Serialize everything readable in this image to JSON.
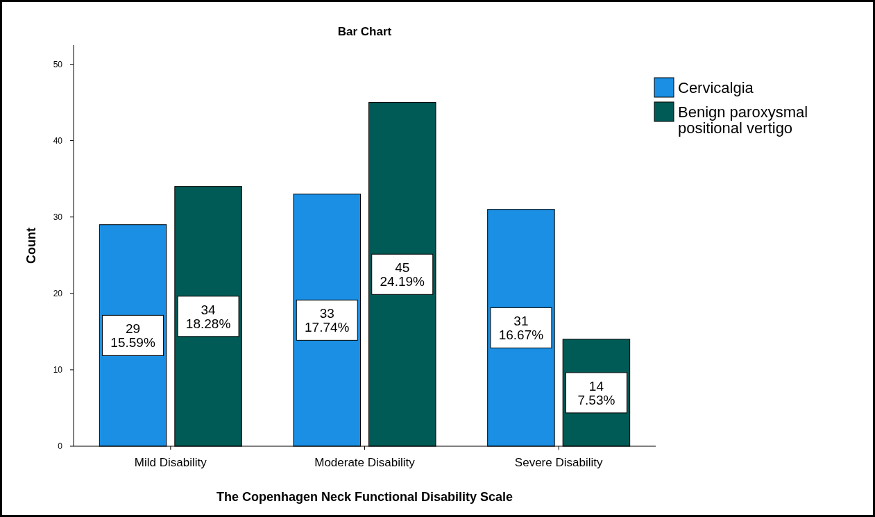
{
  "chart_data": {
    "type": "bar",
    "title": "Bar Chart",
    "xlabel": "The Copenhagen Neck Functional Disability Scale",
    "ylabel": "Count",
    "categories": [
      "Mild Disability",
      "Moderate Disability",
      "Severe Disability"
    ],
    "series": [
      {
        "name": "Cervicalgia",
        "color": "#1a8fe3",
        "values": [
          29,
          33,
          31
        ],
        "value_labels": [
          "29\n15.59%",
          "33\n17.74%",
          "31\n16.67%"
        ]
      },
      {
        "name": "Benign paroxysmal positional vertigo",
        "color": "#005a55",
        "values": [
          34,
          45,
          14
        ],
        "value_labels": [
          "34\n18.28%",
          "45\n24.19%",
          "14\n7.53%"
        ]
      }
    ],
    "ylim": [
      0,
      52.5
    ],
    "yticks": [
      0,
      10,
      20,
      30,
      40,
      50
    ],
    "grid": false,
    "legend": "right"
  }
}
